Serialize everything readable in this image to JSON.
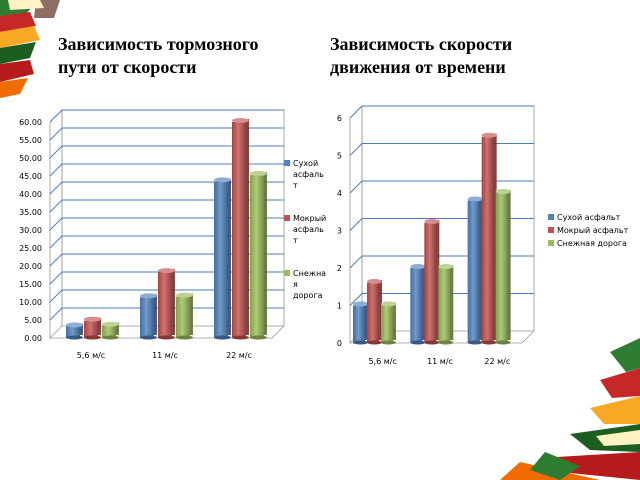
{
  "titles": {
    "left": "Зависимость тормозного\nпути от скорости",
    "right": "Зависимость скорости\nдвижения от времени"
  },
  "colors": {
    "dry": "#4f81bd",
    "wet": "#c0504d",
    "snow": "#9bbb59",
    "grid": "#4a7ebb"
  },
  "decor": [
    "book-stack-top-left",
    "book-stack-bottom-right"
  ],
  "chart_data": [
    {
      "type": "bar",
      "title": "Зависимость тормозного пути от скорости",
      "categories": [
        "5,6 м/с",
        "11 м/с",
        "22 м/с"
      ],
      "series": [
        {
          "name": "Сухой асфальт",
          "legend_lines": [
            "Сухой",
            "асфаль",
            "т"
          ],
          "values": [
            3.2,
            11.3,
            43.5
          ]
        },
        {
          "name": "Мокрый асфальт",
          "legend_lines": [
            "Мокрый",
            "асфаль",
            "т"
          ],
          "values": [
            4.8,
            18.3,
            60.0
          ]
        },
        {
          "name": "Снежная дорога",
          "legend_lines": [
            "Снежна",
            "я",
            "дорога"
          ],
          "values": [
            3.4,
            11.5,
            45.3
          ]
        }
      ],
      "ylim": [
        0,
        60
      ],
      "yticks": [
        "0.00",
        "5.00",
        "10.00",
        "15.00",
        "20.00",
        "25.00",
        "30.00",
        "35.00",
        "40.00",
        "45.00",
        "50.00",
        "55.00",
        "60.00"
      ],
      "grid": true,
      "legend": "right"
    },
    {
      "type": "bar",
      "title": "Зависимость скорости движения от времени",
      "categories": [
        "5,6 м/с",
        "11 м/с",
        "22 м/с"
      ],
      "series": [
        {
          "name": "Сухой асфальт",
          "values": [
            1.0,
            2.0,
            3.8
          ]
        },
        {
          "name": "Мокрый асфальт",
          "values": [
            1.6,
            3.2,
            5.5
          ]
        },
        {
          "name": "Снежная дорога",
          "values": [
            1.0,
            2.0,
            4.0
          ]
        }
      ],
      "ylim": [
        0,
        6
      ],
      "yticks": [
        "0",
        "1",
        "2",
        "3",
        "4",
        "5",
        "6"
      ],
      "grid": true,
      "legend": "right"
    }
  ]
}
